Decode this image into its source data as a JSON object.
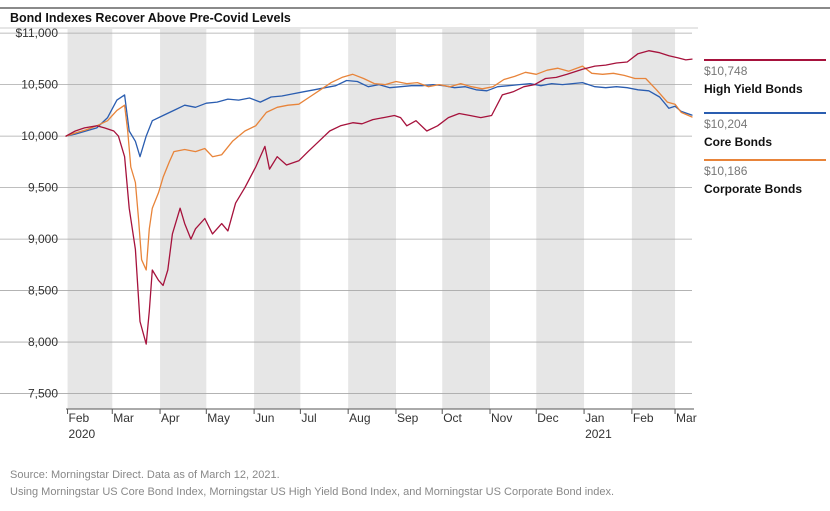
{
  "chart_data": {
    "type": "line",
    "title": "Bond Indexes Recover Above Pre-Covid Levels",
    "xlabel": "",
    "ylabel": "",
    "ylim": [
      7350,
      11050
    ],
    "x_range": [
      "2020-01-31",
      "2021-03-12"
    ],
    "y_ticks": [
      {
        "value": 11000,
        "label": "$11,000"
      },
      {
        "value": 10500,
        "label": "10,500"
      },
      {
        "value": 10000,
        "label": "10,000"
      },
      {
        "value": 9500,
        "label": "9,500"
      },
      {
        "value": 9000,
        "label": "9,000"
      },
      {
        "value": 8500,
        "label": "8,500"
      },
      {
        "value": 8000,
        "label": "8,000"
      },
      {
        "value": 7500,
        "label": "7,500"
      }
    ],
    "x_ticks": [
      {
        "date": "2020-02-01",
        "label": "Feb",
        "year": "2020"
      },
      {
        "date": "2020-03-01",
        "label": "Mar",
        "year": ""
      },
      {
        "date": "2020-04-01",
        "label": "Apr",
        "year": ""
      },
      {
        "date": "2020-05-01",
        "label": "May",
        "year": ""
      },
      {
        "date": "2020-06-01",
        "label": "Jun",
        "year": ""
      },
      {
        "date": "2020-07-01",
        "label": "Jul",
        "year": ""
      },
      {
        "date": "2020-08-01",
        "label": "Aug",
        "year": ""
      },
      {
        "date": "2020-09-01",
        "label": "Sep",
        "year": ""
      },
      {
        "date": "2020-10-01",
        "label": "Oct",
        "year": ""
      },
      {
        "date": "2020-11-01",
        "label": "Nov",
        "year": ""
      },
      {
        "date": "2020-12-01",
        "label": "Dec",
        "year": ""
      },
      {
        "date": "2021-01-01",
        "label": "Jan",
        "year": "2021"
      },
      {
        "date": "2021-02-01",
        "label": "Feb",
        "year": ""
      },
      {
        "date": "2021-03-01",
        "label": "Mar",
        "year": ""
      }
    ],
    "shaded_months": [
      [
        "2020-02-01",
        "2020-03-01"
      ],
      [
        "2020-04-01",
        "2020-05-01"
      ],
      [
        "2020-06-01",
        "2020-07-01"
      ],
      [
        "2020-08-01",
        "2020-09-01"
      ],
      [
        "2020-10-01",
        "2020-11-01"
      ],
      [
        "2020-12-01",
        "2021-01-01"
      ],
      [
        "2021-02-01",
        "2021-03-01"
      ]
    ],
    "series": [
      {
        "name": "High Yield Bonds",
        "color": "#a6123c",
        "end_value": "$10,748",
        "points": [
          [
            "2020-01-31",
            10000
          ],
          [
            "2020-02-06",
            10050
          ],
          [
            "2020-02-12",
            10080
          ],
          [
            "2020-02-20",
            10100
          ],
          [
            "2020-02-25",
            10080
          ],
          [
            "2020-03-02",
            10050
          ],
          [
            "2020-03-05",
            10000
          ],
          [
            "2020-03-09",
            9800
          ],
          [
            "2020-03-12",
            9300
          ],
          [
            "2020-03-16",
            8900
          ],
          [
            "2020-03-19",
            8200
          ],
          [
            "2020-03-23",
            7980
          ],
          [
            "2020-03-25",
            8300
          ],
          [
            "2020-03-27",
            8700
          ],
          [
            "2020-03-31",
            8600
          ],
          [
            "2020-04-03",
            8550
          ],
          [
            "2020-04-06",
            8700
          ],
          [
            "2020-04-09",
            9050
          ],
          [
            "2020-04-14",
            9300
          ],
          [
            "2020-04-17",
            9150
          ],
          [
            "2020-04-21",
            9000
          ],
          [
            "2020-04-24",
            9100
          ],
          [
            "2020-04-30",
            9200
          ],
          [
            "2020-05-05",
            9050
          ],
          [
            "2020-05-11",
            9150
          ],
          [
            "2020-05-15",
            9080
          ],
          [
            "2020-05-20",
            9350
          ],
          [
            "2020-05-26",
            9500
          ],
          [
            "2020-06-02",
            9700
          ],
          [
            "2020-06-08",
            9900
          ],
          [
            "2020-06-11",
            9680
          ],
          [
            "2020-06-16",
            9800
          ],
          [
            "2020-06-22",
            9720
          ],
          [
            "2020-06-30",
            9760
          ],
          [
            "2020-07-06",
            9850
          ],
          [
            "2020-07-13",
            9950
          ],
          [
            "2020-07-20",
            10050
          ],
          [
            "2020-07-27",
            10100
          ],
          [
            "2020-08-04",
            10130
          ],
          [
            "2020-08-10",
            10120
          ],
          [
            "2020-08-17",
            10160
          ],
          [
            "2020-08-24",
            10180
          ],
          [
            "2020-08-31",
            10200
          ],
          [
            "2020-09-04",
            10180
          ],
          [
            "2020-09-08",
            10100
          ],
          [
            "2020-09-14",
            10150
          ],
          [
            "2020-09-21",
            10050
          ],
          [
            "2020-09-28",
            10100
          ],
          [
            "2020-10-05",
            10180
          ],
          [
            "2020-10-12",
            10220
          ],
          [
            "2020-10-19",
            10200
          ],
          [
            "2020-10-26",
            10180
          ],
          [
            "2020-11-02",
            10200
          ],
          [
            "2020-11-09",
            10400
          ],
          [
            "2020-11-16",
            10430
          ],
          [
            "2020-11-23",
            10480
          ],
          [
            "2020-11-30",
            10500
          ],
          [
            "2020-12-07",
            10560
          ],
          [
            "2020-12-14",
            10570
          ],
          [
            "2020-12-21",
            10600
          ],
          [
            "2020-12-31",
            10650
          ],
          [
            "2021-01-08",
            10680
          ],
          [
            "2021-01-15",
            10690
          ],
          [
            "2021-01-22",
            10710
          ],
          [
            "2021-01-29",
            10720
          ],
          [
            "2021-02-05",
            10800
          ],
          [
            "2021-02-12",
            10830
          ],
          [
            "2021-02-19",
            10810
          ],
          [
            "2021-02-25",
            10780
          ],
          [
            "2021-03-03",
            10760
          ],
          [
            "2021-03-08",
            10740
          ],
          [
            "2021-03-12",
            10748
          ]
        ]
      },
      {
        "name": "Core Bonds",
        "color": "#2a5db0",
        "end_value": "$10,204",
        "points": [
          [
            "2020-01-31",
            10000
          ],
          [
            "2020-02-06",
            10020
          ],
          [
            "2020-02-13",
            10050
          ],
          [
            "2020-02-20",
            10080
          ],
          [
            "2020-02-27",
            10180
          ],
          [
            "2020-03-04",
            10350
          ],
          [
            "2020-03-09",
            10400
          ],
          [
            "2020-03-12",
            10050
          ],
          [
            "2020-03-16",
            9950
          ],
          [
            "2020-03-19",
            9800
          ],
          [
            "2020-03-23",
            10000
          ],
          [
            "2020-03-27",
            10150
          ],
          [
            "2020-04-03",
            10200
          ],
          [
            "2020-04-10",
            10250
          ],
          [
            "2020-04-17",
            10300
          ],
          [
            "2020-04-24",
            10280
          ],
          [
            "2020-05-01",
            10320
          ],
          [
            "2020-05-08",
            10330
          ],
          [
            "2020-05-15",
            10360
          ],
          [
            "2020-05-22",
            10350
          ],
          [
            "2020-05-29",
            10370
          ],
          [
            "2020-06-05",
            10330
          ],
          [
            "2020-06-12",
            10380
          ],
          [
            "2020-06-19",
            10390
          ],
          [
            "2020-06-26",
            10410
          ],
          [
            "2020-07-03",
            10430
          ],
          [
            "2020-07-10",
            10450
          ],
          [
            "2020-07-17",
            10470
          ],
          [
            "2020-07-24",
            10490
          ],
          [
            "2020-07-31",
            10540
          ],
          [
            "2020-08-07",
            10530
          ],
          [
            "2020-08-14",
            10480
          ],
          [
            "2020-08-21",
            10500
          ],
          [
            "2020-08-28",
            10470
          ],
          [
            "2020-09-04",
            10480
          ],
          [
            "2020-09-11",
            10490
          ],
          [
            "2020-09-18",
            10490
          ],
          [
            "2020-09-25",
            10500
          ],
          [
            "2020-10-02",
            10490
          ],
          [
            "2020-10-09",
            10470
          ],
          [
            "2020-10-16",
            10480
          ],
          [
            "2020-10-23",
            10450
          ],
          [
            "2020-10-30",
            10440
          ],
          [
            "2020-11-06",
            10480
          ],
          [
            "2020-11-13",
            10490
          ],
          [
            "2020-11-20",
            10500
          ],
          [
            "2020-11-27",
            10510
          ],
          [
            "2020-12-04",
            10490
          ],
          [
            "2020-12-11",
            10510
          ],
          [
            "2020-12-18",
            10500
          ],
          [
            "2020-12-31",
            10520
          ],
          [
            "2021-01-08",
            10480
          ],
          [
            "2021-01-15",
            10470
          ],
          [
            "2021-01-22",
            10480
          ],
          [
            "2021-01-29",
            10470
          ],
          [
            "2021-02-05",
            10450
          ],
          [
            "2021-02-12",
            10440
          ],
          [
            "2021-02-19",
            10380
          ],
          [
            "2021-02-25",
            10270
          ],
          [
            "2021-03-01",
            10290
          ],
          [
            "2021-03-05",
            10240
          ],
          [
            "2021-03-12",
            10204
          ]
        ]
      },
      {
        "name": "Corporate Bonds",
        "color": "#e8843a",
        "end_value": "$10,186",
        "points": [
          [
            "2020-01-31",
            10000
          ],
          [
            "2020-02-06",
            10030
          ],
          [
            "2020-02-13",
            10060
          ],
          [
            "2020-02-20",
            10100
          ],
          [
            "2020-02-27",
            10150
          ],
          [
            "2020-03-04",
            10250
          ],
          [
            "2020-03-09",
            10300
          ],
          [
            "2020-03-11",
            10050
          ],
          [
            "2020-03-13",
            9700
          ],
          [
            "2020-03-16",
            9550
          ],
          [
            "2020-03-18",
            9200
          ],
          [
            "2020-03-20",
            8800
          ],
          [
            "2020-03-23",
            8700
          ],
          [
            "2020-03-25",
            9100
          ],
          [
            "2020-03-27",
            9300
          ],
          [
            "2020-03-31",
            9450
          ],
          [
            "2020-04-03",
            9600
          ],
          [
            "2020-04-07",
            9750
          ],
          [
            "2020-04-10",
            9850
          ],
          [
            "2020-04-17",
            9870
          ],
          [
            "2020-04-24",
            9850
          ],
          [
            "2020-04-30",
            9880
          ],
          [
            "2020-05-05",
            9800
          ],
          [
            "2020-05-11",
            9820
          ],
          [
            "2020-05-18",
            9950
          ],
          [
            "2020-05-26",
            10050
          ],
          [
            "2020-06-02",
            10100
          ],
          [
            "2020-06-09",
            10230
          ],
          [
            "2020-06-16",
            10280
          ],
          [
            "2020-06-23",
            10300
          ],
          [
            "2020-06-30",
            10310
          ],
          [
            "2020-07-07",
            10380
          ],
          [
            "2020-07-14",
            10450
          ],
          [
            "2020-07-21",
            10520
          ],
          [
            "2020-07-28",
            10570
          ],
          [
            "2020-08-04",
            10600
          ],
          [
            "2020-08-11",
            10560
          ],
          [
            "2020-08-18",
            10510
          ],
          [
            "2020-08-25",
            10500
          ],
          [
            "2020-09-01",
            10530
          ],
          [
            "2020-09-08",
            10510
          ],
          [
            "2020-09-15",
            10520
          ],
          [
            "2020-09-22",
            10480
          ],
          [
            "2020-09-29",
            10500
          ],
          [
            "2020-10-06",
            10480
          ],
          [
            "2020-10-13",
            10510
          ],
          [
            "2020-10-20",
            10480
          ],
          [
            "2020-10-27",
            10460
          ],
          [
            "2020-11-03",
            10480
          ],
          [
            "2020-11-10",
            10550
          ],
          [
            "2020-11-17",
            10580
          ],
          [
            "2020-11-24",
            10620
          ],
          [
            "2020-12-01",
            10600
          ],
          [
            "2020-12-08",
            10640
          ],
          [
            "2020-12-15",
            10660
          ],
          [
            "2020-12-22",
            10630
          ],
          [
            "2020-12-31",
            10680
          ],
          [
            "2021-01-06",
            10610
          ],
          [
            "2021-01-13",
            10600
          ],
          [
            "2021-01-20",
            10610
          ],
          [
            "2021-01-27",
            10590
          ],
          [
            "2021-02-03",
            10560
          ],
          [
            "2021-02-10",
            10560
          ],
          [
            "2021-02-17",
            10450
          ],
          [
            "2021-02-24",
            10330
          ],
          [
            "2021-03-01",
            10310
          ],
          [
            "2021-03-05",
            10230
          ],
          [
            "2021-03-12",
            10186
          ]
        ]
      }
    ]
  },
  "source_note": "Source: Morningstar Direct.  Data as of March 12, 2021.",
  "index_note": "Using Morningstar US Core Bond Index, Morningstar US High Yield Bond Index, and Morningstar US Corporate Bond index."
}
